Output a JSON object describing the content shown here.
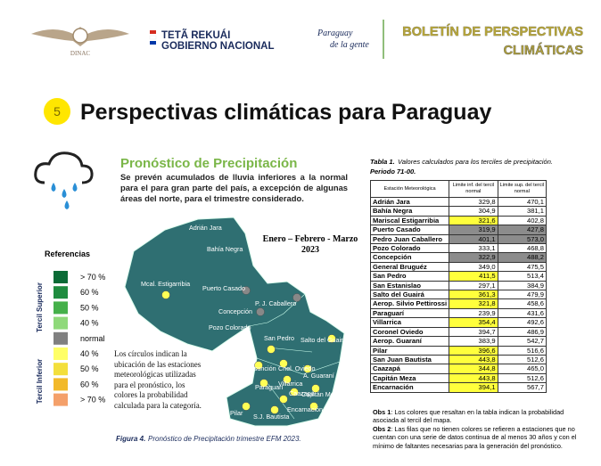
{
  "header": {
    "logo_text": "DINAC",
    "government_line1": "TETÃ REKUÁI",
    "government_line2": "GOBIERNO NACIONAL",
    "slogan_line1": "Paraguay",
    "slogan_line2": "de la gente",
    "bulletin_title_line1": "BOLETÍN DE PERSPECTIVAS",
    "bulletin_title_line2": "CLIMÁTICAS"
  },
  "section": {
    "number": "5",
    "title": "Perspectivas climáticas para Paraguay"
  },
  "forecast": {
    "title": "Pronóstico de Precipitación",
    "description": "Se prevén acumulados de lluvia inferiores a la normal para el para gran parte del país, a excepción de algunas áreas del norte, para el trimestre considerado.",
    "period_line1": "Enero – Febrero - Marzo",
    "period_line2": "2023",
    "map_labels": [
      "Adrián Jara",
      "Bahía Negra",
      "Mcal. Estigarribia",
      "Puerto Casado",
      "P. J. Caballero",
      "Concepción",
      "Pozo Colorado",
      "San Pedro",
      "Salto del Guairá",
      "Asunción",
      "Cnel. Oviedo",
      "A. Guaraní",
      "Paraguarí",
      "Villarrica",
      "Caazapá",
      "Capitán Meza",
      "Pilar",
      "S.J. Bautista",
      "Encarnación"
    ],
    "circles_note": "Los círculos indican la ubicación de las estaciones meteorológicas utilizadas para el pronóstico, los colores la probabilidad calculada para la categoría.",
    "figure_caption_label": "Figura 4.",
    "figure_caption": "Pronóstico de Precipitación trimestre EFM 2023."
  },
  "legend": {
    "title": "Referencias",
    "upper_label": "Tercil Superior",
    "lower_label": "Tercil Inferior",
    "items": [
      {
        "label": "> 70 %",
        "color": "#0b6b36"
      },
      {
        "label": "60 %",
        "color": "#1f8c3f"
      },
      {
        "label": "50 %",
        "color": "#45b04a"
      },
      {
        "label": "40 %",
        "color": "#8fd97a"
      },
      {
        "label": "normal",
        "color": "#808080"
      },
      {
        "label": "40 %",
        "color": "#ffff66"
      },
      {
        "label": "50 %",
        "color": "#f3df3c"
      },
      {
        "label": "60 %",
        "color": "#f2b92a"
      },
      {
        "label": "> 70 %",
        "color": "#f4a06a"
      }
    ]
  },
  "table": {
    "caption_label": "Tabla 1.",
    "caption": "Valores calculados para los terciles de precipitación.",
    "period": "Periodo 71-00.",
    "headers": [
      "Estación Meteorológica",
      "Limite inf. del tercil normal",
      "Limite sup. del tercil normal"
    ],
    "rows": [
      {
        "station": "Adrián Jara",
        "lower": "329,8",
        "upper": "470,1"
      },
      {
        "station": "Bahía Negra",
        "lower": "304,9",
        "upper": "381,1"
      },
      {
        "station": "Mariscal Estigarribia",
        "lower": "321,6",
        "upper": "402,8",
        "lower_fill": "#ffff3c"
      },
      {
        "station": "Puerto Casado",
        "lower": "319,9",
        "upper": "427,8",
        "lower_fill": "#8c8c8c",
        "upper_fill": "#8c8c8c"
      },
      {
        "station": "Pedro Juan Caballero",
        "lower": "401,1",
        "upper": "573,0",
        "lower_fill": "#8c8c8c",
        "upper_fill": "#8c8c8c"
      },
      {
        "station": "Pozo Colorado",
        "lower": "333,1",
        "upper": "468,8"
      },
      {
        "station": "Concepción",
        "lower": "322,9",
        "upper": "488,2",
        "lower_fill": "#8c8c8c",
        "upper_fill": "#8c8c8c"
      },
      {
        "station": "General Bruguéz",
        "lower": "349,0",
        "upper": "475,5"
      },
      {
        "station": "San Pedro",
        "lower": "411,5",
        "upper": "513,4",
        "lower_fill": "#ffff3c"
      },
      {
        "station": "San Estanislao",
        "lower": "297,1",
        "upper": "384,9"
      },
      {
        "station": "Salto del Guairá",
        "lower": "361,3",
        "upper": "479,9",
        "lower_fill": "#ffff3c"
      },
      {
        "station": "Aerop. Silvio Pettirossi",
        "lower": "321,8",
        "upper": "458,6",
        "lower_fill": "#ffff3c"
      },
      {
        "station": "Paraguarí",
        "lower": "239,9",
        "upper": "431,6"
      },
      {
        "station": "Villarrica",
        "lower": "354,4",
        "upper": "492,6",
        "lower_fill": "#ffff3c"
      },
      {
        "station": "Coronel Oviedo",
        "lower": "394,7",
        "upper": "486,9"
      },
      {
        "station": "Aerop. Guaraní",
        "lower": "383,9",
        "upper": "542,7"
      },
      {
        "station": "Pilar",
        "lower": "396,6",
        "upper": "516,6",
        "lower_fill": "#ffff3c"
      },
      {
        "station": "San Juan Bautista",
        "lower": "443,8",
        "upper": "512,6",
        "lower_fill": "#ffff3c"
      },
      {
        "station": "Caazapá",
        "lower": "344,8",
        "upper": "465,0",
        "lower_fill": "#ffff3c"
      },
      {
        "station": "Capitán Meza",
        "lower": "443,8",
        "upper": "512,6",
        "lower_fill": "#ffff3c"
      },
      {
        "station": "Encarnación",
        "lower": "394,1",
        "upper": "567,7",
        "lower_fill": "#ffff3c"
      }
    ]
  },
  "notes": [
    {
      "label": "Obs 1",
      "text": ": Los colores que resaltan en la tabla indican la probabilidad asociada al tercil del mapa."
    },
    {
      "label": "Obs 2",
      "text": ": Las filas que no tienen colores se refieren a estaciones que no cuentan con una serie de datos continua de al menos 30 años y con el mínimo de faltantes necesarias para la generación del pronóstico."
    }
  ]
}
